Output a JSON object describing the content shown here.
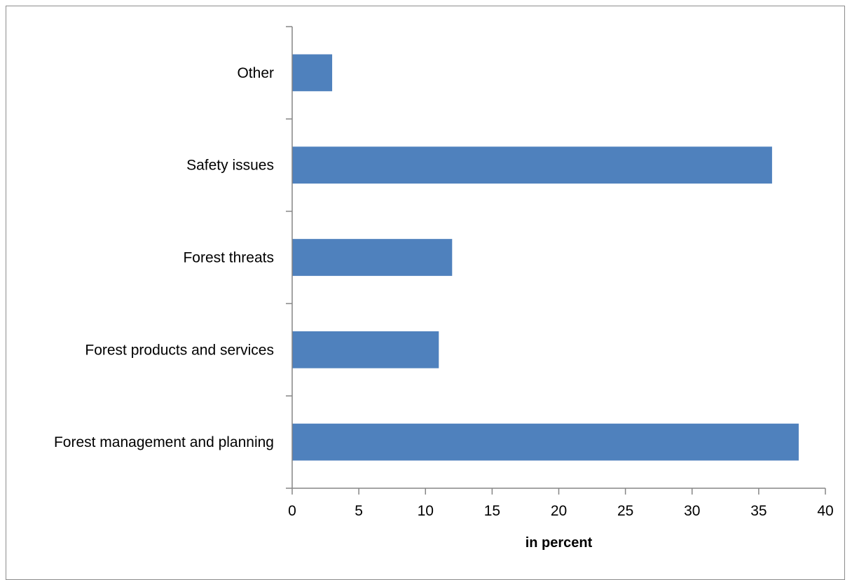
{
  "chart_data": {
    "type": "bar",
    "orientation": "horizontal",
    "categories": [
      "Forest management and planning",
      "Forest products and services",
      "Forest threats",
      "Safety issues",
      "Other"
    ],
    "values": [
      38,
      11,
      12,
      36,
      3
    ],
    "xlabel": "in percent",
    "ylabel": "",
    "xlim": [
      0,
      40
    ],
    "xticks": [
      "0",
      "5",
      "10",
      "15",
      "20",
      "25",
      "30",
      "35",
      "40"
    ],
    "grid": false,
    "legend": "none",
    "colors": {
      "bar": "#4f81bd",
      "axis": "#868686"
    }
  }
}
